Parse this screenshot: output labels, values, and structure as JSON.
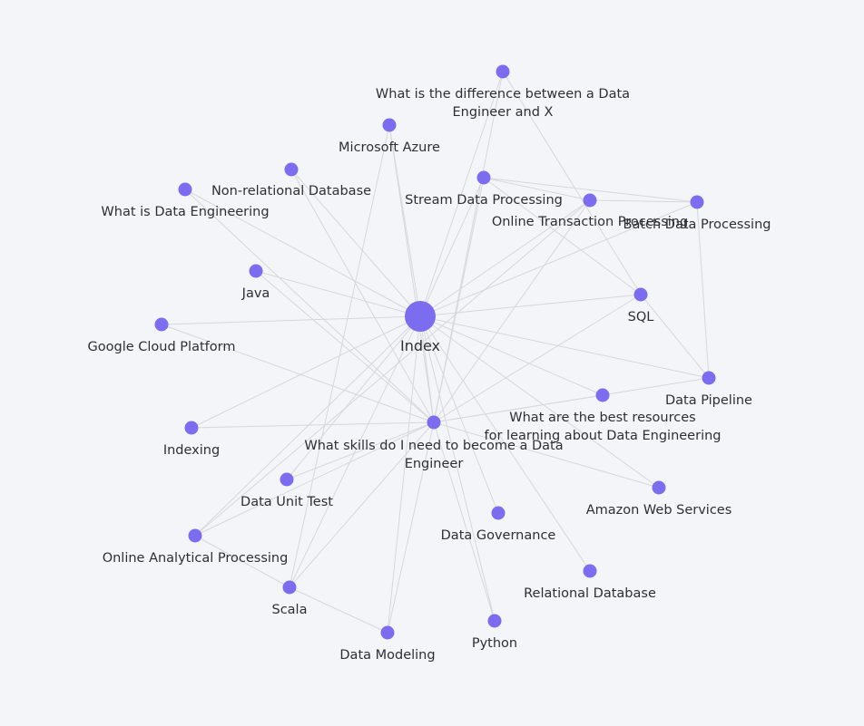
{
  "theme": {
    "background": "#f4f5f8",
    "node_color": "#7b6cf0",
    "edge_color": "#d7d7dc",
    "label_color": "#2f2f33"
  },
  "graph": {
    "nodes": [
      {
        "id": "index",
        "label": "Index",
        "hub": true
      },
      {
        "id": "skills",
        "label": "What skills do I need to become a Data Engineer",
        "hub": false
      },
      {
        "id": "diff",
        "label": "What is the difference between a Data Engineer and X",
        "hub": false
      },
      {
        "id": "azure",
        "label": "Microsoft Azure",
        "hub": false
      },
      {
        "id": "nonrel",
        "label": "Non-relational Database",
        "hub": false
      },
      {
        "id": "whatde",
        "label": "What is Data Engineering",
        "hub": false
      },
      {
        "id": "stream",
        "label": "Stream Data Processing",
        "hub": false
      },
      {
        "id": "oltp",
        "label": "Online Transaction Processing",
        "hub": false
      },
      {
        "id": "batch",
        "label": "Batch Data Processing",
        "hub": false
      },
      {
        "id": "java",
        "label": "Java",
        "hub": false
      },
      {
        "id": "sql",
        "label": "SQL",
        "hub": false
      },
      {
        "id": "gcp",
        "label": "Google Cloud Platform",
        "hub": false
      },
      {
        "id": "pipeline",
        "label": "Data Pipeline",
        "hub": false
      },
      {
        "id": "resources",
        "label": "What are the best resources for learning about Data Engineering",
        "hub": false
      },
      {
        "id": "indexing",
        "label": "Indexing",
        "hub": false
      },
      {
        "id": "unittest",
        "label": "Data Unit Test",
        "hub": false
      },
      {
        "id": "aws",
        "label": "Amazon Web Services",
        "hub": false
      },
      {
        "id": "governance",
        "label": "Data Governance",
        "hub": false
      },
      {
        "id": "olap",
        "label": "Online Analytical Processing",
        "hub": false
      },
      {
        "id": "relational",
        "label": "Relational Database",
        "hub": false
      },
      {
        "id": "scala",
        "label": "Scala",
        "hub": false
      },
      {
        "id": "python",
        "label": "Python",
        "hub": false
      },
      {
        "id": "modeling",
        "label": "Data Modeling",
        "hub": false
      }
    ],
    "edges": [
      [
        "index",
        "diff"
      ],
      [
        "index",
        "azure"
      ],
      [
        "index",
        "nonrel"
      ],
      [
        "index",
        "whatde"
      ],
      [
        "index",
        "stream"
      ],
      [
        "index",
        "oltp"
      ],
      [
        "index",
        "batch"
      ],
      [
        "index",
        "java"
      ],
      [
        "index",
        "sql"
      ],
      [
        "index",
        "gcp"
      ],
      [
        "index",
        "pipeline"
      ],
      [
        "index",
        "resources"
      ],
      [
        "index",
        "indexing"
      ],
      [
        "index",
        "unittest"
      ],
      [
        "index",
        "aws"
      ],
      [
        "index",
        "governance"
      ],
      [
        "index",
        "olap"
      ],
      [
        "index",
        "relational"
      ],
      [
        "index",
        "scala"
      ],
      [
        "index",
        "python"
      ],
      [
        "index",
        "modeling"
      ],
      [
        "index",
        "skills"
      ],
      [
        "skills",
        "diff"
      ],
      [
        "skills",
        "azure"
      ],
      [
        "skills",
        "nonrel"
      ],
      [
        "skills",
        "whatde"
      ],
      [
        "skills",
        "stream"
      ],
      [
        "skills",
        "oltp"
      ],
      [
        "skills",
        "java"
      ],
      [
        "skills",
        "gcp"
      ],
      [
        "skills",
        "pipeline"
      ],
      [
        "skills",
        "resources"
      ],
      [
        "skills",
        "indexing"
      ],
      [
        "skills",
        "unittest"
      ],
      [
        "skills",
        "aws"
      ],
      [
        "skills",
        "olap"
      ],
      [
        "skills",
        "scala"
      ],
      [
        "skills",
        "python"
      ],
      [
        "skills",
        "modeling"
      ],
      [
        "skills",
        "sql"
      ],
      [
        "stream",
        "oltp"
      ],
      [
        "stream",
        "batch"
      ],
      [
        "oltp",
        "batch"
      ],
      [
        "stream",
        "sql"
      ],
      [
        "diff",
        "sql"
      ],
      [
        "batch",
        "pipeline"
      ],
      [
        "sql",
        "pipeline"
      ],
      [
        "olap",
        "scala"
      ],
      [
        "scala",
        "modeling"
      ],
      [
        "olap",
        "oltp"
      ],
      [
        "scala",
        "azure"
      ]
    ]
  }
}
